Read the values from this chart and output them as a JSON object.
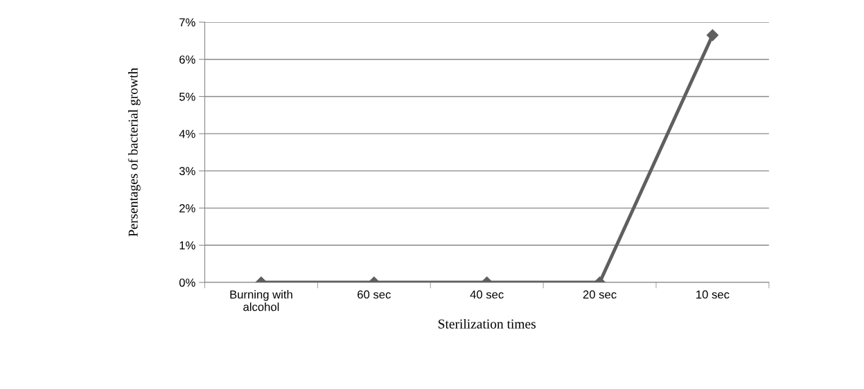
{
  "chart_data": {
    "type": "line",
    "xlabel": "Sterilization times",
    "ylabel": "Persentages of bacterial growth",
    "categories": [
      "Burning with\nalcohol",
      "60 sec",
      "40 sec",
      "20 sec",
      "10 sec"
    ],
    "series": [
      {
        "color": "#5f5f5f",
        "values": [
          0,
          0,
          0,
          0,
          6.65
        ]
      }
    ],
    "ylim": [
      0,
      7
    ],
    "yticks": [
      {
        "value": 0,
        "label": "0%"
      },
      {
        "value": 1,
        "label": "1%"
      },
      {
        "value": 2,
        "label": "2%"
      },
      {
        "value": 3,
        "label": "3%"
      },
      {
        "value": 4,
        "label": "4%"
      },
      {
        "value": 5,
        "label": "5%"
      },
      {
        "value": 6,
        "label": "6%"
      },
      {
        "value": 7,
        "label": "7%"
      }
    ],
    "grid": "y",
    "marker": "diamond",
    "line_style": "solid"
  }
}
